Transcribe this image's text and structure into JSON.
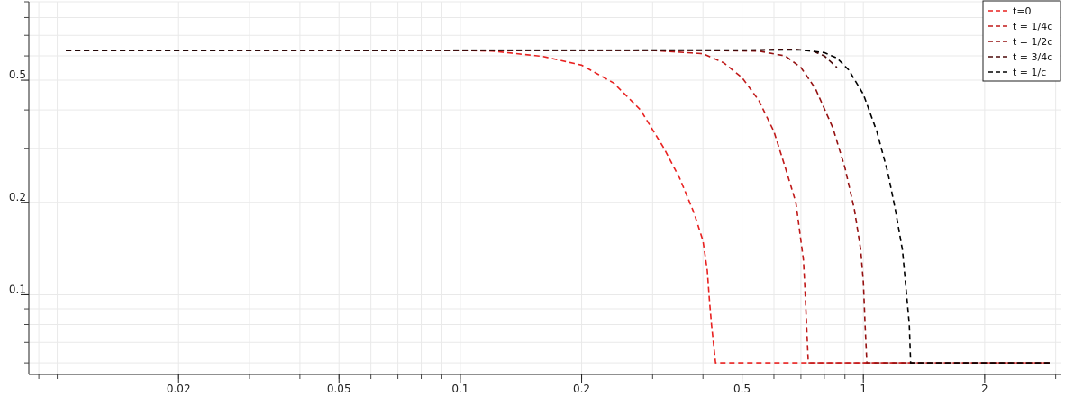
{
  "chart_data": {
    "type": "line",
    "title": "",
    "xlabel": "",
    "ylabel": "",
    "x_scale": "log",
    "y_scale": "log",
    "xlim": [
      0.0085,
      3.1
    ],
    "ylim": [
      0.055,
      0.9
    ],
    "grid": true,
    "legend_position": "top-right",
    "x_ticks": [
      {
        "value": 0.02,
        "label": "0.02"
      },
      {
        "value": 0.05,
        "label": "0.05"
      },
      {
        "value": 0.1,
        "label": "0.1"
      },
      {
        "value": 0.2,
        "label": "0.2"
      },
      {
        "value": 0.5,
        "label": "0.5"
      },
      {
        "value": 1,
        "label": "1"
      },
      {
        "value": 2,
        "label": "2"
      }
    ],
    "y_ticks": [
      {
        "value": 0.1,
        "label": "0.1"
      },
      {
        "value": 0.2,
        "label": "0.2"
      },
      {
        "value": 0.5,
        "label": "0.5"
      }
    ],
    "series": [
      {
        "name": "t=0",
        "color": "#e8201f",
        "x": [
          0.0105,
          0.05,
          0.1,
          0.12,
          0.16,
          0.2,
          0.24,
          0.28,
          0.32,
          0.35,
          0.38,
          0.4,
          0.41,
          0.415,
          0.42,
          0.43,
          2.9
        ],
        "y": [
          0.625,
          0.625,
          0.625,
          0.622,
          0.598,
          0.56,
          0.49,
          0.4,
          0.3,
          0.24,
          0.185,
          0.15,
          0.12,
          0.096,
          0.08,
          0.06,
          0.06
        ]
      },
      {
        "name": "t = 1/4c",
        "color": "#c01818",
        "x": [
          0.0105,
          0.2,
          0.3,
          0.4,
          0.45,
          0.5,
          0.55,
          0.6,
          0.64,
          0.68,
          0.7,
          0.71,
          0.715,
          0.72,
          0.73,
          2.9
        ],
        "y": [
          0.625,
          0.625,
          0.625,
          0.61,
          0.57,
          0.51,
          0.43,
          0.34,
          0.26,
          0.2,
          0.15,
          0.13,
          0.11,
          0.09,
          0.06,
          0.06
        ]
      },
      {
        "name": "t = 1/2c",
        "color": "#941010",
        "x": [
          0.0105,
          0.4,
          0.55,
          0.64,
          0.7,
          0.76,
          0.84,
          0.9,
          0.95,
          0.985,
          1.0,
          1.01,
          1.02,
          2.9
        ],
        "y": [
          0.625,
          0.625,
          0.622,
          0.6,
          0.55,
          0.47,
          0.35,
          0.26,
          0.19,
          0.14,
          0.11,
          0.08,
          0.06,
          0.06
        ]
      },
      {
        "name": "t = 3/4c",
        "color": "#4a0808",
        "x": [
          0.0105,
          0.5,
          0.6,
          0.68,
          0.75,
          0.8,
          0.86
        ],
        "y": [
          0.625,
          0.625,
          0.63,
          0.63,
          0.622,
          0.6,
          0.55
        ]
      },
      {
        "name": "t = 1/c",
        "color": "#000000",
        "x": [
          0.0105,
          0.7,
          0.8,
          0.86,
          0.92,
          1.0,
          1.08,
          1.15,
          1.2,
          1.25,
          1.28,
          1.3,
          1.31,
          2.9
        ],
        "y": [
          0.625,
          0.627,
          0.615,
          0.59,
          0.54,
          0.45,
          0.34,
          0.25,
          0.19,
          0.14,
          0.1,
          0.08,
          0.06,
          0.06
        ]
      }
    ]
  }
}
